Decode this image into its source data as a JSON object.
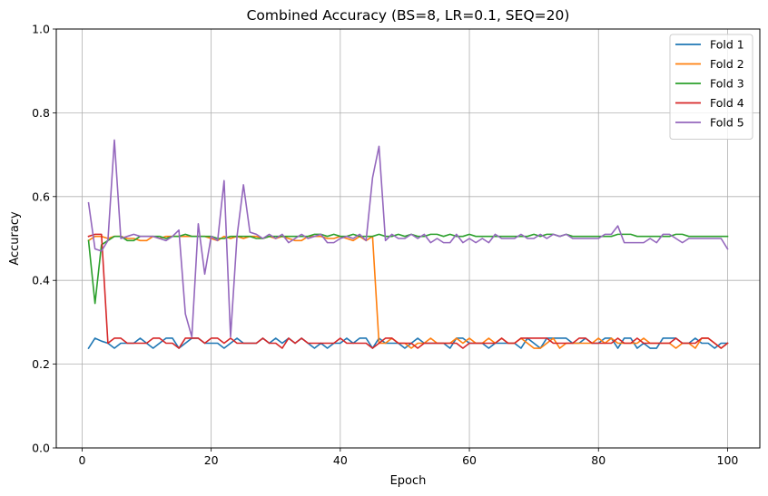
{
  "chart_data": {
    "type": "line",
    "title": "Combined Accuracy (BS=8, LR=0.1, SEQ=20)",
    "xlabel": "Epoch",
    "ylabel": "Accuracy",
    "xlim": [
      -4,
      105
    ],
    "ylim": [
      0.0,
      1.0
    ],
    "xticks": [
      0,
      20,
      40,
      60,
      80,
      100
    ],
    "yticks": [
      0.0,
      0.2,
      0.4,
      0.6,
      0.8,
      1.0
    ],
    "xtick_labels": [
      "0",
      "20",
      "40",
      "60",
      "80",
      "100"
    ],
    "ytick_labels": [
      "0.0",
      "0.2",
      "0.4",
      "0.6",
      "0.8",
      "1.0"
    ],
    "grid": true,
    "legend_position": "top-right",
    "series": [
      {
        "name": "Fold 1",
        "color": "#1f77b4",
        "x": [
          1,
          2,
          3,
          4,
          5,
          6,
          7,
          8,
          9,
          10,
          11,
          12,
          13,
          14,
          15,
          16,
          17,
          18,
          19,
          20,
          21,
          22,
          23,
          24,
          25,
          26,
          27,
          28,
          29,
          30,
          31,
          32,
          33,
          34,
          35,
          36,
          37,
          38,
          39,
          40,
          41,
          42,
          43,
          44,
          45,
          46,
          47,
          48,
          49,
          50,
          51,
          52,
          53,
          54,
          55,
          56,
          57,
          58,
          59,
          60,
          61,
          62,
          63,
          64,
          65,
          66,
          67,
          68,
          69,
          70,
          71,
          72,
          73,
          74,
          75,
          76,
          77,
          78,
          79,
          80,
          81,
          82,
          83,
          84,
          85,
          86,
          87,
          88,
          89,
          90,
          91,
          92,
          93,
          94,
          95,
          96,
          97,
          98,
          99,
          100
        ],
        "values": [
          0.238,
          0.262,
          0.255,
          0.25,
          0.238,
          0.25,
          0.25,
          0.25,
          0.262,
          0.25,
          0.238,
          0.25,
          0.262,
          0.262,
          0.238,
          0.25,
          0.262,
          0.262,
          0.25,
          0.25,
          0.25,
          0.238,
          0.25,
          0.262,
          0.25,
          0.25,
          0.25,
          0.262,
          0.25,
          0.262,
          0.25,
          0.262,
          0.25,
          0.262,
          0.25,
          0.238,
          0.25,
          0.238,
          0.25,
          0.25,
          0.262,
          0.25,
          0.262,
          0.262,
          0.238,
          0.262,
          0.25,
          0.25,
          0.25,
          0.238,
          0.25,
          0.262,
          0.25,
          0.25,
          0.25,
          0.25,
          0.238,
          0.262,
          0.262,
          0.25,
          0.25,
          0.25,
          0.238,
          0.25,
          0.25,
          0.25,
          0.25,
          0.238,
          0.262,
          0.25,
          0.238,
          0.262,
          0.262,
          0.262,
          0.262,
          0.25,
          0.25,
          0.262,
          0.25,
          0.25,
          0.262,
          0.262,
          0.238,
          0.262,
          0.262,
          0.238,
          0.25,
          0.238,
          0.238,
          0.262,
          0.262,
          0.262,
          0.25,
          0.25,
          0.262,
          0.25,
          0.25,
          0.238,
          0.25,
          0.25
        ]
      },
      {
        "name": "Fold 2",
        "color": "#ff7f0e",
        "x": [
          1,
          2,
          3,
          4,
          5,
          6,
          7,
          8,
          9,
          10,
          11,
          12,
          13,
          14,
          15,
          16,
          17,
          18,
          19,
          20,
          21,
          22,
          23,
          24,
          25,
          26,
          27,
          28,
          29,
          30,
          31,
          32,
          33,
          34,
          35,
          36,
          37,
          38,
          39,
          40,
          41,
          42,
          43,
          44,
          45,
          46,
          47,
          48,
          49,
          50,
          51,
          52,
          53,
          54,
          55,
          56,
          57,
          58,
          59,
          60,
          61,
          62,
          63,
          64,
          65,
          66,
          67,
          68,
          69,
          70,
          71,
          72,
          73,
          74,
          75,
          76,
          77,
          78,
          79,
          80,
          81,
          82,
          83,
          84,
          85,
          86,
          87,
          88,
          89,
          90,
          91,
          92,
          93,
          94,
          95,
          96,
          97,
          98,
          99,
          100
        ],
        "values": [
          0.495,
          0.505,
          0.505,
          0.5,
          0.505,
          0.505,
          0.5,
          0.5,
          0.495,
          0.495,
          0.505,
          0.5,
          0.505,
          0.505,
          0.505,
          0.505,
          0.505,
          0.505,
          0.505,
          0.5,
          0.495,
          0.505,
          0.5,
          0.505,
          0.5,
          0.505,
          0.505,
          0.5,
          0.505,
          0.5,
          0.505,
          0.5,
          0.495,
          0.495,
          0.505,
          0.505,
          0.505,
          0.5,
          0.5,
          0.505,
          0.5,
          0.495,
          0.505,
          0.495,
          0.505,
          0.25,
          0.25,
          0.262,
          0.25,
          0.25,
          0.238,
          0.25,
          0.25,
          0.262,
          0.25,
          0.25,
          0.25,
          0.262,
          0.25,
          0.262,
          0.25,
          0.25,
          0.262,
          0.25,
          0.262,
          0.25,
          0.25,
          0.262,
          0.25,
          0.238,
          0.238,
          0.25,
          0.262,
          0.238,
          0.25,
          0.25,
          0.25,
          0.25,
          0.25,
          0.262,
          0.25,
          0.262,
          0.25,
          0.25,
          0.25,
          0.25,
          0.262,
          0.25,
          0.25,
          0.25,
          0.25,
          0.238,
          0.25,
          0.25,
          0.238,
          0.262,
          0.262,
          0.25,
          0.238,
          0.25
        ]
      },
      {
        "name": "Fold 3",
        "color": "#2ca02c",
        "x": [
          1,
          2,
          3,
          4,
          5,
          6,
          7,
          8,
          9,
          10,
          11,
          12,
          13,
          14,
          15,
          16,
          17,
          18,
          19,
          20,
          21,
          22,
          23,
          24,
          25,
          26,
          27,
          28,
          29,
          30,
          31,
          32,
          33,
          34,
          35,
          36,
          37,
          38,
          39,
          40,
          41,
          42,
          43,
          44,
          45,
          46,
          47,
          48,
          49,
          50,
          51,
          52,
          53,
          54,
          55,
          56,
          57,
          58,
          59,
          60,
          61,
          62,
          63,
          64,
          65,
          66,
          67,
          68,
          69,
          70,
          71,
          72,
          73,
          74,
          75,
          76,
          77,
          78,
          79,
          80,
          81,
          82,
          83,
          84,
          85,
          86,
          87,
          88,
          89,
          90,
          91,
          92,
          93,
          94,
          95,
          96,
          97,
          98,
          99,
          100
        ],
        "values": [
          0.495,
          0.345,
          0.485,
          0.495,
          0.505,
          0.505,
          0.495,
          0.495,
          0.505,
          0.505,
          0.505,
          0.505,
          0.5,
          0.505,
          0.505,
          0.51,
          0.505,
          0.505,
          0.505,
          0.505,
          0.5,
          0.5,
          0.505,
          0.505,
          0.505,
          0.505,
          0.5,
          0.5,
          0.505,
          0.505,
          0.505,
          0.505,
          0.505,
          0.505,
          0.505,
          0.51,
          0.51,
          0.505,
          0.51,
          0.505,
          0.505,
          0.51,
          0.505,
          0.505,
          0.505,
          0.51,
          0.505,
          0.505,
          0.51,
          0.505,
          0.51,
          0.505,
          0.505,
          0.51,
          0.51,
          0.505,
          0.51,
          0.505,
          0.505,
          0.51,
          0.505,
          0.505,
          0.505,
          0.505,
          0.505,
          0.505,
          0.505,
          0.505,
          0.505,
          0.51,
          0.505,
          0.51,
          0.51,
          0.505,
          0.51,
          0.505,
          0.505,
          0.505,
          0.505,
          0.505,
          0.505,
          0.505,
          0.51,
          0.51,
          0.51,
          0.505,
          0.505,
          0.505,
          0.505,
          0.505,
          0.505,
          0.51,
          0.51,
          0.505,
          0.505,
          0.505,
          0.505,
          0.505,
          0.505,
          0.505
        ]
      },
      {
        "name": "Fold 4",
        "color": "#d62728",
        "x": [
          1,
          2,
          3,
          4,
          5,
          6,
          7,
          8,
          9,
          10,
          11,
          12,
          13,
          14,
          15,
          16,
          17,
          18,
          19,
          20,
          21,
          22,
          23,
          24,
          25,
          26,
          27,
          28,
          29,
          30,
          31,
          32,
          33,
          34,
          35,
          36,
          37,
          38,
          39,
          40,
          41,
          42,
          43,
          44,
          45,
          46,
          47,
          48,
          49,
          50,
          51,
          52,
          53,
          54,
          55,
          56,
          57,
          58,
          59,
          60,
          61,
          62,
          63,
          64,
          65,
          66,
          67,
          68,
          69,
          70,
          71,
          72,
          73,
          74,
          75,
          76,
          77,
          78,
          79,
          80,
          81,
          82,
          83,
          84,
          85,
          86,
          87,
          88,
          89,
          90,
          91,
          92,
          93,
          94,
          95,
          96,
          97,
          98,
          99,
          100
        ],
        "values": [
          0.505,
          0.51,
          0.51,
          0.25,
          0.262,
          0.262,
          0.25,
          0.25,
          0.25,
          0.25,
          0.262,
          0.262,
          0.25,
          0.25,
          0.238,
          0.262,
          0.262,
          0.262,
          0.25,
          0.262,
          0.262,
          0.25,
          0.262,
          0.25,
          0.25,
          0.25,
          0.25,
          0.262,
          0.25,
          0.25,
          0.238,
          0.262,
          0.25,
          0.262,
          0.25,
          0.25,
          0.25,
          0.25,
          0.25,
          0.262,
          0.25,
          0.25,
          0.25,
          0.25,
          0.238,
          0.25,
          0.262,
          0.262,
          0.25,
          0.25,
          0.25,
          0.238,
          0.25,
          0.25,
          0.25,
          0.25,
          0.25,
          0.25,
          0.238,
          0.25,
          0.25,
          0.25,
          0.25,
          0.25,
          0.262,
          0.25,
          0.25,
          0.262,
          0.262,
          0.262,
          0.262,
          0.262,
          0.25,
          0.25,
          0.25,
          0.25,
          0.262,
          0.262,
          0.25,
          0.25,
          0.25,
          0.25,
          0.262,
          0.25,
          0.25,
          0.262,
          0.25,
          0.25,
          0.25,
          0.25,
          0.25,
          0.262,
          0.25,
          0.25,
          0.25,
          0.262,
          0.262,
          0.25,
          0.238,
          0.25
        ]
      },
      {
        "name": "Fold 5",
        "color": "#9467bd",
        "x": [
          1,
          2,
          3,
          4,
          5,
          6,
          7,
          8,
          9,
          10,
          11,
          12,
          13,
          14,
          15,
          16,
          17,
          18,
          19,
          20,
          21,
          22,
          23,
          24,
          25,
          26,
          27,
          28,
          29,
          30,
          31,
          32,
          33,
          34,
          35,
          36,
          37,
          38,
          39,
          40,
          41,
          42,
          43,
          44,
          45,
          46,
          47,
          48,
          49,
          50,
          51,
          52,
          53,
          54,
          55,
          56,
          57,
          58,
          59,
          60,
          61,
          62,
          63,
          64,
          65,
          66,
          67,
          68,
          69,
          70,
          71,
          72,
          73,
          74,
          75,
          76,
          77,
          78,
          79,
          80,
          81,
          82,
          83,
          84,
          85,
          86,
          87,
          88,
          89,
          90,
          91,
          92,
          93,
          94,
          95,
          96,
          97,
          98,
          99,
          100
        ],
        "values": [
          0.585,
          0.475,
          0.47,
          0.495,
          0.735,
          0.5,
          0.505,
          0.51,
          0.505,
          0.505,
          0.505,
          0.5,
          0.495,
          0.505,
          0.52,
          0.32,
          0.265,
          0.535,
          0.415,
          0.505,
          0.495,
          0.638,
          0.265,
          0.505,
          0.628,
          0.515,
          0.51,
          0.5,
          0.51,
          0.5,
          0.51,
          0.49,
          0.5,
          0.51,
          0.5,
          0.505,
          0.51,
          0.49,
          0.49,
          0.5,
          0.505,
          0.5,
          0.51,
          0.495,
          0.645,
          0.72,
          0.495,
          0.51,
          0.5,
          0.5,
          0.51,
          0.5,
          0.51,
          0.49,
          0.5,
          0.49,
          0.49,
          0.51,
          0.49,
          0.5,
          0.49,
          0.5,
          0.49,
          0.51,
          0.5,
          0.5,
          0.5,
          0.51,
          0.5,
          0.5,
          0.51,
          0.5,
          0.51,
          0.505,
          0.51,
          0.5,
          0.5,
          0.5,
          0.5,
          0.5,
          0.51,
          0.51,
          0.53,
          0.49,
          0.49,
          0.49,
          0.49,
          0.5,
          0.49,
          0.51,
          0.51,
          0.5,
          0.49,
          0.5,
          0.5,
          0.5,
          0.5,
          0.5,
          0.5,
          0.475
        ]
      }
    ]
  }
}
